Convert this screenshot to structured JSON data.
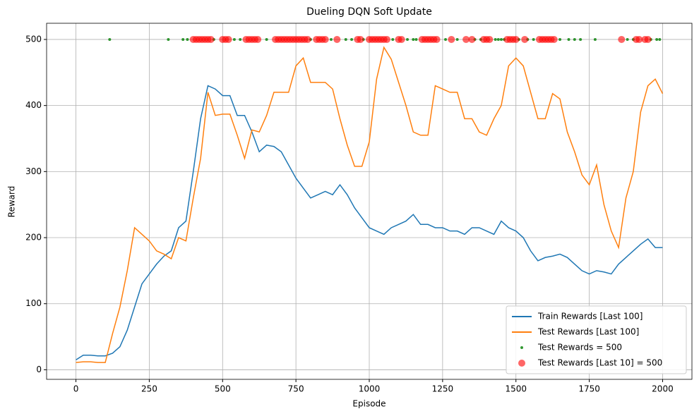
{
  "chart_data": {
    "type": "line",
    "title": "Dueling DQN Soft Update",
    "x_label": "Episode",
    "y_label": "Reward",
    "xlim": [
      -100,
      2100
    ],
    "xticks": [
      0,
      250,
      500,
      750,
      1000,
      1250,
      1500,
      1750,
      2000
    ],
    "ylim": [
      -14.5,
      524.5
    ],
    "yticks": [
      0,
      100,
      200,
      300,
      400,
      500
    ],
    "grid": true,
    "legend": "lower right",
    "series": [
      {
        "name": "Train Rewards [Last 100]",
        "type": "line",
        "color": "#1f77b4",
        "x": [
          0,
          25,
          50,
          75,
          100,
          125,
          150,
          175,
          200,
          225,
          250,
          275,
          300,
          325,
          350,
          375,
          400,
          425,
          450,
          475,
          500,
          525,
          550,
          575,
          600,
          625,
          650,
          675,
          700,
          725,
          750,
          775,
          800,
          825,
          850,
          875,
          900,
          925,
          950,
          975,
          1000,
          1025,
          1050,
          1075,
          1100,
          1125,
          1150,
          1175,
          1200,
          1225,
          1250,
          1275,
          1300,
          1325,
          1350,
          1375,
          1400,
          1425,
          1450,
          1475,
          1500,
          1525,
          1550,
          1575,
          1600,
          1625,
          1650,
          1675,
          1700,
          1725,
          1750,
          1775,
          1800,
          1825,
          1850,
          1875,
          1900,
          1925,
          1950,
          1975,
          2000
        ],
        "values": [
          15,
          22,
          22,
          21,
          21,
          25,
          35,
          60,
          95,
          130,
          145,
          160,
          172,
          180,
          215,
          225,
          300,
          380,
          430,
          425,
          415,
          415,
          385,
          385,
          360,
          330,
          340,
          338,
          330,
          310,
          290,
          275,
          260,
          265,
          270,
          265,
          280,
          265,
          245,
          230,
          215,
          210,
          205,
          215,
          220,
          225,
          235,
          220,
          220,
          215,
          215,
          210,
          210,
          205,
          215,
          215,
          210,
          205,
          225,
          215,
          210,
          200,
          180,
          165,
          170,
          172,
          175,
          170,
          160,
          150,
          145,
          150,
          148,
          145,
          160,
          170,
          180,
          190,
          198,
          185,
          185
        ]
      },
      {
        "name": "Test Rewards [Last 100]",
        "type": "line",
        "color": "#ff7f0e",
        "x": [
          0,
          25,
          50,
          75,
          100,
          125,
          150,
          175,
          200,
          225,
          250,
          275,
          300,
          325,
          350,
          375,
          400,
          425,
          450,
          475,
          500,
          525,
          550,
          575,
          600,
          625,
          650,
          675,
          700,
          725,
          750,
          775,
          800,
          825,
          850,
          875,
          900,
          925,
          950,
          975,
          1000,
          1025,
          1050,
          1075,
          1100,
          1125,
          1150,
          1175,
          1200,
          1225,
          1250,
          1275,
          1300,
          1325,
          1350,
          1375,
          1400,
          1425,
          1450,
          1475,
          1500,
          1525,
          1550,
          1575,
          1600,
          1625,
          1650,
          1675,
          1700,
          1725,
          1750,
          1775,
          1800,
          1825,
          1850,
          1875,
          1900,
          1925,
          1950,
          1975,
          2000
        ],
        "values": [
          11,
          12,
          12,
          11,
          11,
          55,
          95,
          150,
          215,
          205,
          195,
          180,
          175,
          168,
          200,
          195,
          260,
          320,
          420,
          385,
          387,
          387,
          355,
          320,
          363,
          360,
          385,
          420,
          420,
          420,
          460,
          472,
          435,
          435,
          435,
          425,
          380,
          340,
          308,
          308,
          345,
          440,
          488,
          470,
          435,
          400,
          360,
          355,
          355,
          430,
          425,
          420,
          420,
          380,
          380,
          360,
          355,
          380,
          400,
          460,
          472,
          460,
          420,
          380,
          380,
          418,
          410,
          360,
          330,
          295,
          280,
          310,
          250,
          210,
          185,
          260,
          300,
          390,
          430,
          440,
          418
        ]
      },
      {
        "name": "Test Rewards = 500",
        "type": "scatter",
        "color": "green",
        "size": 2,
        "x": [
          115,
          315,
          365,
          380,
          470,
          540,
          560,
          650,
          800,
          870,
          920,
          940,
          980,
          1080,
          1130,
          1150,
          1160,
          1260,
          1300,
          1360,
          1380,
          1430,
          1440,
          1450,
          1460,
          1510,
          1540,
          1560,
          1650,
          1680,
          1700,
          1720,
          1770,
          1880,
          1900,
          1960,
          1980,
          1990
        ],
        "values": [
          500,
          500,
          500,
          500,
          500,
          500,
          500,
          500,
          500,
          500,
          500,
          500,
          500,
          500,
          500,
          500,
          500,
          500,
          500,
          500,
          500,
          500,
          500,
          500,
          500,
          500,
          500,
          500,
          500,
          500,
          500,
          500,
          500,
          500,
          500,
          500,
          500,
          500
        ]
      },
      {
        "name": "Test Rewards [Last 10] = 500",
        "type": "scatter",
        "color": "red",
        "size": 5,
        "x": [
          400,
          410,
          420,
          430,
          440,
          450,
          460,
          500,
          510,
          520,
          580,
          590,
          600,
          610,
          620,
          680,
          690,
          700,
          710,
          720,
          730,
          740,
          750,
          760,
          770,
          780,
          790,
          820,
          830,
          840,
          850,
          890,
          960,
          970,
          1000,
          1010,
          1020,
          1030,
          1040,
          1050,
          1060,
          1100,
          1110,
          1180,
          1190,
          1200,
          1210,
          1220,
          1230,
          1280,
          1330,
          1350,
          1390,
          1400,
          1410,
          1470,
          1480,
          1490,
          1500,
          1530,
          1580,
          1590,
          1600,
          1610,
          1620,
          1630,
          1860,
          1910,
          1920,
          1940,
          1950
        ],
        "values": [
          500,
          500,
          500,
          500,
          500,
          500,
          500,
          500,
          500,
          500,
          500,
          500,
          500,
          500,
          500,
          500,
          500,
          500,
          500,
          500,
          500,
          500,
          500,
          500,
          500,
          500,
          500,
          500,
          500,
          500,
          500,
          500,
          500,
          500,
          500,
          500,
          500,
          500,
          500,
          500,
          500,
          500,
          500,
          500,
          500,
          500,
          500,
          500,
          500,
          500,
          500,
          500,
          500,
          500,
          500,
          500,
          500,
          500,
          500,
          500,
          500,
          500,
          500,
          500,
          500,
          500,
          500,
          500,
          500,
          500,
          500
        ]
      }
    ]
  }
}
